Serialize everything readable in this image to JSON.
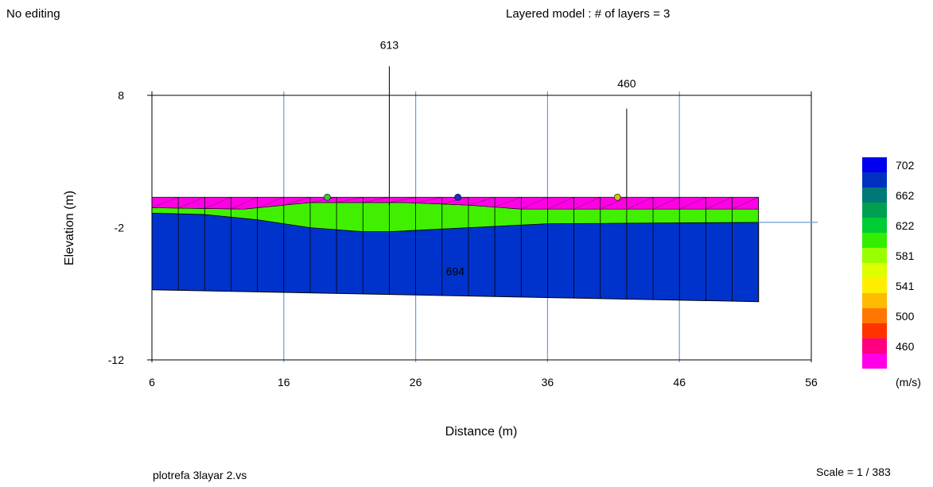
{
  "status_text": "No editing",
  "title": "Layered model : # of layers = 3",
  "scale_text": "Scale = 1 / 383",
  "file_name": "plotrefa 3layar 2.vs",
  "chart_data": {
    "type": "cross-section",
    "xlabel": "Distance (m)",
    "ylabel": "Elevation (m)",
    "xlim": [
      6,
      56
    ],
    "ylim": [
      -12,
      8
    ],
    "x_ticks": [
      6,
      16,
      26,
      36,
      46,
      56
    ],
    "y_ticks": [
      8,
      -2,
      -12
    ],
    "grid": true,
    "layers": [
      {
        "layer": 1,
        "velocity_color": "#ff00e6",
        "top": [
          [
            6,
            0.3
          ],
          [
            52,
            0.3
          ]
        ],
        "bottom": [
          [
            6,
            -0.5
          ],
          [
            13,
            -0.6
          ],
          [
            18,
            -0.1
          ],
          [
            25,
            -0.1
          ],
          [
            30,
            -0.3
          ],
          [
            34,
            -0.6
          ],
          [
            52,
            -0.6
          ]
        ]
      },
      {
        "layer": 2,
        "velocity_color": "#40f000",
        "bottom": [
          [
            6,
            -0.9
          ],
          [
            10,
            -1.0
          ],
          [
            14,
            -1.4
          ],
          [
            18,
            -2.0
          ],
          [
            22,
            -2.3
          ],
          [
            24,
            -2.3
          ],
          [
            36,
            -1.7
          ],
          [
            52,
            -1.6
          ]
        ]
      },
      {
        "layer": 3,
        "velocity_color": "#0033cc",
        "label": "694",
        "label_position": [
          29,
          -5.6
        ],
        "bottom": [
          [
            6,
            -6.7
          ],
          [
            52,
            -7.6
          ]
        ]
      }
    ],
    "velocity_labels": [
      {
        "text": "613",
        "x": 24,
        "label_elevation": 11.5,
        "line_top": 10.2,
        "line_bottom": -0.3
      },
      {
        "text": "460",
        "x": 42,
        "label_elevation": 8.6,
        "line_top": 7.0,
        "line_bottom": 0.3
      }
    ],
    "markers": [
      {
        "x": 19.3,
        "y": 0.3,
        "color": "#33cc33"
      },
      {
        "x": 29.2,
        "y": 0.3,
        "color": "#1133cc"
      },
      {
        "x": 41.3,
        "y": 0.3,
        "color": "#c8c800"
      }
    ],
    "colorbar": {
      "unit": "(m/s)",
      "levels": [
        {
          "value": "702",
          "color": "#0000ee"
        },
        {
          "color": "#0030c0"
        },
        {
          "value": "662",
          "color": "#007878"
        },
        {
          "color": "#00a050"
        },
        {
          "value": "622",
          "color": "#00cc33"
        },
        {
          "color": "#33ee00"
        },
        {
          "value": "581",
          "color": "#99ff00"
        },
        {
          "color": "#ddff00"
        },
        {
          "value": "541",
          "color": "#ffee00"
        },
        {
          "color": "#ffbb00"
        },
        {
          "value": "500",
          "color": "#ff7700"
        },
        {
          "color": "#ff3300"
        },
        {
          "value": "460",
          "color": "#ff0080"
        },
        {
          "color": "#ff00e6"
        }
      ]
    }
  }
}
